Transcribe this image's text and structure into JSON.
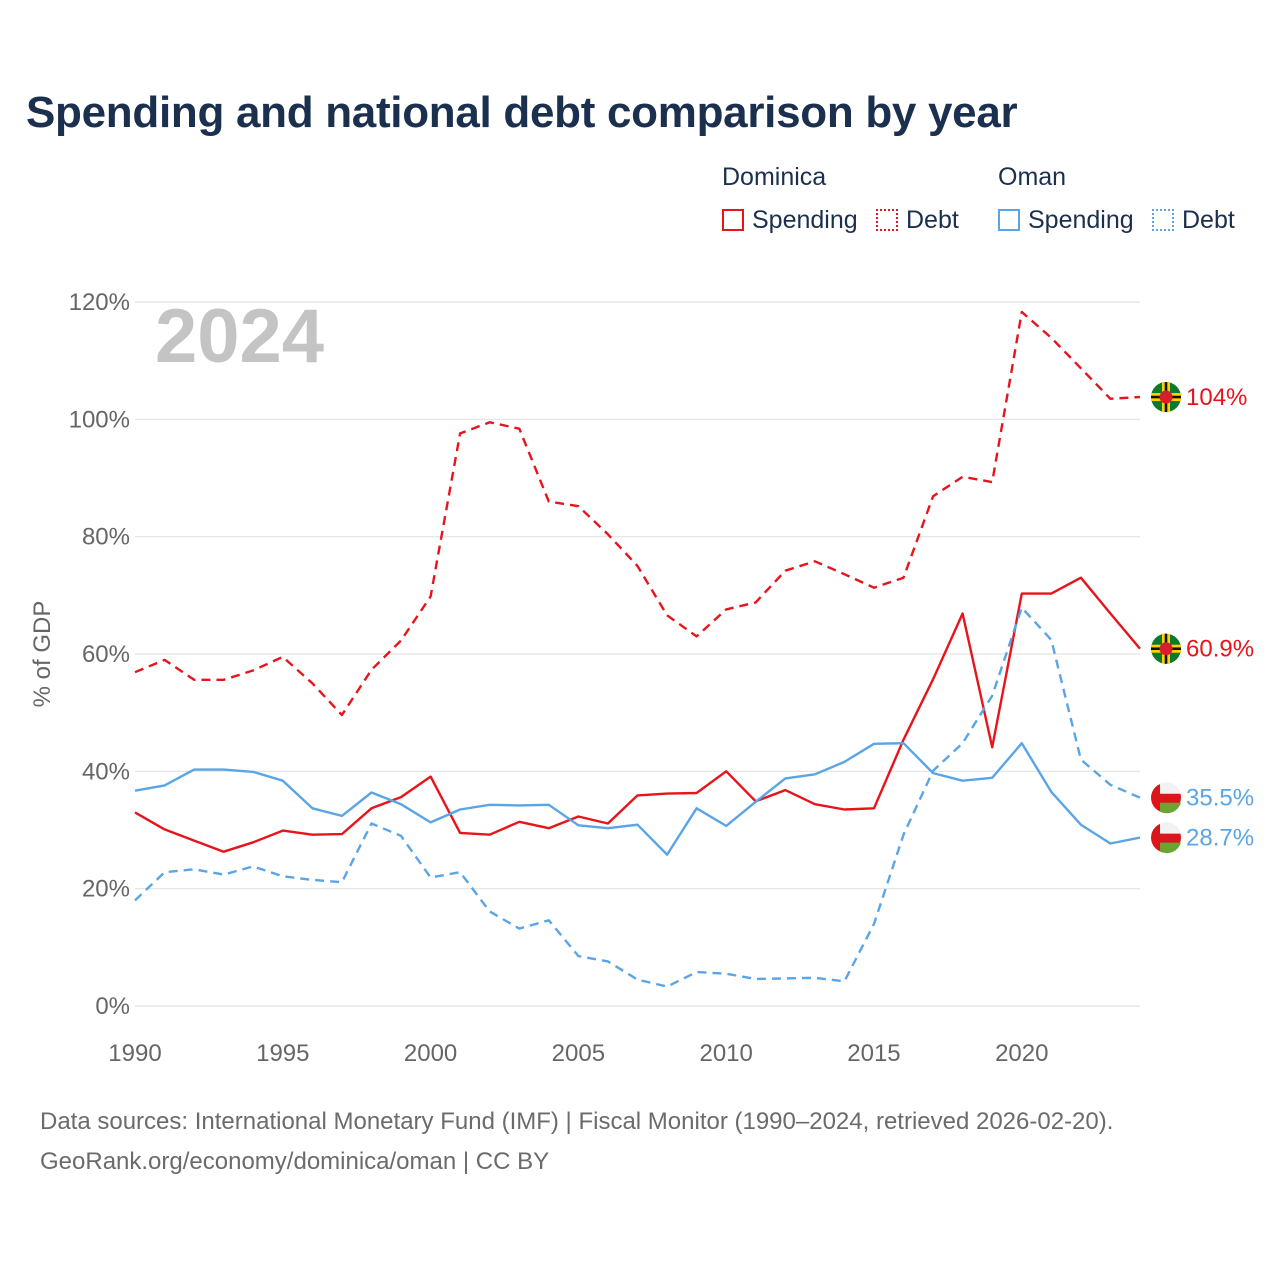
{
  "title": "Spending and national debt comparison by year",
  "legend": {
    "groups": [
      {
        "country": "Dominica",
        "color": "#e8141c",
        "items": [
          {
            "label": "Spending",
            "style": "solid"
          },
          {
            "label": "Debt",
            "style": "dotted"
          }
        ]
      },
      {
        "country": "Oman",
        "color": "#5aa5e6",
        "items": [
          {
            "label": "Spending",
            "style": "solid"
          },
          {
            "label": "Debt",
            "style": "dotted"
          }
        ]
      }
    ]
  },
  "year_label": "2024",
  "footer": {
    "line1": "Data sources: International Monetary Fund (IMF) | Fiscal Monitor (1990–2024, retrieved 2026-02-20).",
    "line2": "GeoRank.org/economy/dominica/oman | CC BY"
  },
  "chart_data": {
    "type": "line",
    "title": "Spending and national debt comparison by year",
    "xlabel": "",
    "ylabel": "% of GDP",
    "xlim": [
      1990,
      2024
    ],
    "ylim": [
      0,
      120
    ],
    "grid": true,
    "xticks": [
      1990,
      1995,
      2000,
      2005,
      2010,
      2015,
      2020
    ],
    "yticks": [
      0,
      20,
      40,
      60,
      80,
      100,
      120
    ],
    "ytick_labels": [
      "0%",
      "20%",
      "40%",
      "60%",
      "80%",
      "100%",
      "120%"
    ],
    "x": [
      1990,
      1991,
      1992,
      1993,
      1994,
      1995,
      1996,
      1997,
      1998,
      1999,
      2000,
      2001,
      2002,
      2003,
      2004,
      2005,
      2006,
      2007,
      2008,
      2009,
      2010,
      2011,
      2012,
      2013,
      2014,
      2015,
      2016,
      2017,
      2018,
      2019,
      2020,
      2021,
      2022,
      2023,
      2024
    ],
    "series": [
      {
        "name": "Dominica Debt",
        "country": "Dominica",
        "metric": "Debt",
        "color": "#e8141c",
        "dash": "dashed",
        "end_label": "104%",
        "values": [
          56.9,
          59.0,
          55.6,
          55.6,
          57.2,
          59.5,
          55.0,
          49.6,
          57.3,
          62.3,
          69.8,
          97.6,
          99.5,
          98.4,
          86.0,
          85.2,
          80.4,
          75.0,
          66.6,
          63.0,
          67.6,
          68.8,
          74.2,
          75.8,
          73.6,
          71.3,
          73.0,
          86.9,
          90.2,
          89.3,
          118.3,
          113.9,
          108.7,
          103.5,
          103.8
        ]
      },
      {
        "name": "Dominica Spending",
        "country": "Dominica",
        "metric": "Spending",
        "color": "#e8141c",
        "dash": "solid",
        "end_label": "60.9%",
        "values": [
          33.0,
          30.1,
          28.2,
          26.3,
          27.9,
          29.9,
          29.2,
          29.3,
          33.7,
          35.6,
          39.1,
          29.5,
          29.2,
          31.4,
          30.3,
          32.3,
          31.1,
          35.9,
          36.2,
          36.3,
          40.0,
          34.9,
          36.8,
          34.4,
          33.5,
          33.7,
          45.4,
          55.7,
          66.9,
          44.1,
          70.3,
          70.3,
          73.0,
          66.9,
          60.9
        ]
      },
      {
        "name": "Oman Debt",
        "country": "Oman",
        "metric": "Debt",
        "color": "#5aa5e6",
        "dash": "dashed",
        "end_label": "35.5%",
        "values": [
          18.0,
          22.8,
          23.3,
          22.4,
          23.8,
          22.1,
          21.5,
          21.1,
          31.1,
          29.0,
          21.9,
          22.8,
          16.1,
          13.2,
          14.6,
          8.5,
          7.6,
          4.5,
          3.3,
          5.8,
          5.5,
          4.6,
          4.7,
          4.8,
          4.2,
          14.0,
          29.2,
          40.1,
          44.8,
          52.9,
          67.9,
          62.4,
          42.0,
          37.7,
          35.5
        ]
      },
      {
        "name": "Oman Spending",
        "country": "Oman",
        "metric": "Spending",
        "color": "#5aa5e6",
        "dash": "solid",
        "end_label": "28.7%",
        "values": [
          36.7,
          37.6,
          40.3,
          40.3,
          39.9,
          38.4,
          33.7,
          32.4,
          36.4,
          34.4,
          31.3,
          33.5,
          34.3,
          34.2,
          34.3,
          30.8,
          30.3,
          30.9,
          25.8,
          33.7,
          30.7,
          34.8,
          38.8,
          39.5,
          41.6,
          44.7,
          44.8,
          39.7,
          38.4,
          38.9,
          44.8,
          36.5,
          30.9,
          27.7,
          28.7
        ]
      }
    ]
  }
}
